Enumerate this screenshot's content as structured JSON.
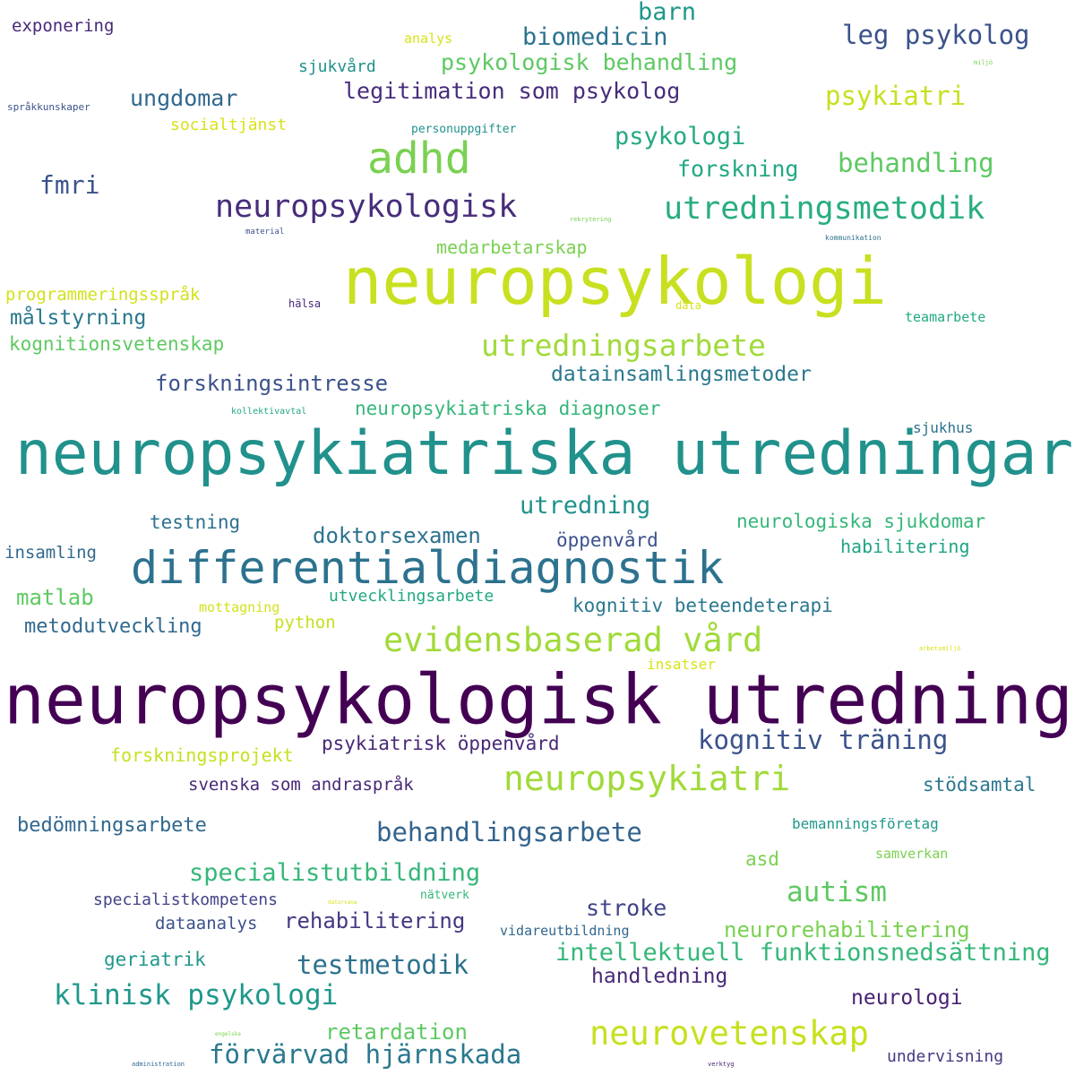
{
  "words": [
    {
      "text": "neuropsykologisk utredning",
      "color": "#440154"
    },
    {
      "text": "neuropsykiatriska utredningar",
      "color": "#21918c"
    },
    {
      "text": "neuropsykologi",
      "color": "#c8e020"
    },
    {
      "text": "differentialdiagnostik",
      "color": "#2c728e"
    },
    {
      "text": "adhd",
      "color": "#7ad151"
    },
    {
      "text": "neuropsykologisk",
      "color": "#472d7b"
    },
    {
      "text": "utredningsmetodik",
      "color": "#28ae80"
    },
    {
      "text": "evidensbaserad vård",
      "color": "#a0da39"
    },
    {
      "text": "neuropsykiatri",
      "color": "#a0da39"
    },
    {
      "text": "utredningsarbete",
      "color": "#a0da39"
    },
    {
      "text": "neurovetenskap",
      "color": "#c8e020"
    },
    {
      "text": "klinisk psykologi",
      "color": "#1f988b"
    },
    {
      "text": "förvärvad hjärnskada",
      "color": "#2a788e"
    },
    {
      "text": "behandlingsarbete",
      "color": "#33638d"
    },
    {
      "text": "kognitiv träning",
      "color": "#3b528b"
    },
    {
      "text": "autism",
      "color": "#5ec962"
    },
    {
      "text": "testmetodik",
      "color": "#2c728e"
    },
    {
      "text": "specialistutbildning",
      "color": "#35b779"
    },
    {
      "text": "leg psykolog",
      "color": "#3b528b"
    },
    {
      "text": "psykiatri",
      "color": "#c8e020"
    },
    {
      "text": "behandling",
      "color": "#5ec962"
    },
    {
      "text": "psykologi",
      "color": "#23a983"
    },
    {
      "text": "biomedicin",
      "color": "#2c728e"
    },
    {
      "text": "barn",
      "color": "#1f988b"
    },
    {
      "text": "psykologisk behandling",
      "color": "#5ec962"
    },
    {
      "text": "legitimation som psykolog",
      "color": "#472d7b"
    },
    {
      "text": "ungdomar",
      "color": "#31688e"
    },
    {
      "text": "fmri",
      "color": "#3b528b"
    },
    {
      "text": "forskning",
      "color": "#22a884"
    },
    {
      "text": "utredning",
      "color": "#21918c"
    },
    {
      "text": "doktorsexamen",
      "color": "#2c728e"
    },
    {
      "text": "intellektuell funktionsnedsättning",
      "color": "#35b779"
    },
    {
      "text": "retardation",
      "color": "#5ec962"
    },
    {
      "text": "rehabilitering",
      "color": "#443983"
    },
    {
      "text": "neurorehabilitering",
      "color": "#7ad151"
    },
    {
      "text": "stroke",
      "color": "#414487"
    },
    {
      "text": "handledning",
      "color": "#482878"
    },
    {
      "text": "neurologi",
      "color": "#482173"
    },
    {
      "text": "forskningsintresse",
      "color": "#3b528b"
    },
    {
      "text": "datainsamlingsmetoder",
      "color": "#2a788e"
    },
    {
      "text": "neuropsykiatriska diagnoser",
      "color": "#35b779"
    },
    {
      "text": "kognitiv beteendeterapi",
      "color": "#2a788e"
    },
    {
      "text": "neurologiska sjukdomar",
      "color": "#35b779"
    },
    {
      "text": "psykiatrisk öppenvård",
      "color": "#482878"
    },
    {
      "text": "svenska som andraspråk",
      "color": "#482878"
    },
    {
      "text": "bedömningsarbete",
      "color": "#31688e"
    },
    {
      "text": "stödsamtal",
      "color": "#2a788e"
    },
    {
      "text": "målstyrning",
      "color": "#2a788e"
    },
    {
      "text": "kognitionsvetenskap",
      "color": "#5ec962"
    },
    {
      "text": "medarbetarskap",
      "color": "#7ad151"
    },
    {
      "text": "matlab",
      "color": "#5ec962"
    },
    {
      "text": "metodutveckling",
      "color": "#31688e"
    },
    {
      "text": "testning",
      "color": "#2c728e"
    },
    {
      "text": "habilitering",
      "color": "#20a486"
    },
    {
      "text": "öppenvård",
      "color": "#3b528b"
    },
    {
      "text": "utvecklingsarbete",
      "color": "#22a884"
    },
    {
      "text": "python",
      "color": "#c8e020"
    },
    {
      "text": "mottagning",
      "color": "#d2e21b"
    },
    {
      "text": "insatser",
      "color": "#d8e219"
    },
    {
      "text": "forskningsprojekt",
      "color": "#c8e020"
    },
    {
      "text": "programmeringsspråk",
      "color": "#d2e21b"
    },
    {
      "text": "socialtjänst",
      "color": "#d8e219"
    },
    {
      "text": "analys",
      "color": "#d8e219"
    },
    {
      "text": "sjukvård",
      "color": "#21918c"
    },
    {
      "text": "personuppgifter",
      "color": "#21918c"
    },
    {
      "text": "exponering",
      "color": "#482878"
    },
    {
      "text": "språkkunskaper",
      "color": "#3b528b"
    },
    {
      "text": "insamling",
      "color": "#31688e"
    },
    {
      "text": "specialistkompetens",
      "color": "#414487"
    },
    {
      "text": "dataanalys",
      "color": "#3b528b"
    },
    {
      "text": "geriatrik",
      "color": "#1f988b"
    },
    {
      "text": "asd",
      "color": "#7ad151"
    },
    {
      "text": "vidareutbildning",
      "color": "#31688e"
    },
    {
      "text": "nätverk",
      "color": "#35b779"
    },
    {
      "text": "samverkan",
      "color": "#7ad151"
    },
    {
      "text": "bemanningsföretag",
      "color": "#1f988b"
    },
    {
      "text": "undervisning",
      "color": "#443983"
    },
    {
      "text": "teamarbete",
      "color": "#22a884"
    },
    {
      "text": "sjukhus",
      "color": "#2c728e"
    },
    {
      "text": "hälsa",
      "color": "#482878"
    },
    {
      "text": "data",
      "color": "#d8e219"
    },
    {
      "text": "kollektivavtal",
      "color": "#22a884"
    },
    {
      "text": "material",
      "color": "#3b528b"
    },
    {
      "text": "kommunikation",
      "color": "#2c728e"
    },
    {
      "text": "rekrytering",
      "color": "#7ad151"
    },
    {
      "text": "miljö",
      "color": "#7ad151"
    },
    {
      "text": "arbetsmiljö",
      "color": "#d8e219"
    },
    {
      "text": "datorvana",
      "color": "#d8e219"
    },
    {
      "text": "engelska",
      "color": "#7ad151"
    },
    {
      "text": "administration",
      "color": "#31688e"
    },
    {
      "text": "verktyg",
      "color": "#482878"
    }
  ]
}
